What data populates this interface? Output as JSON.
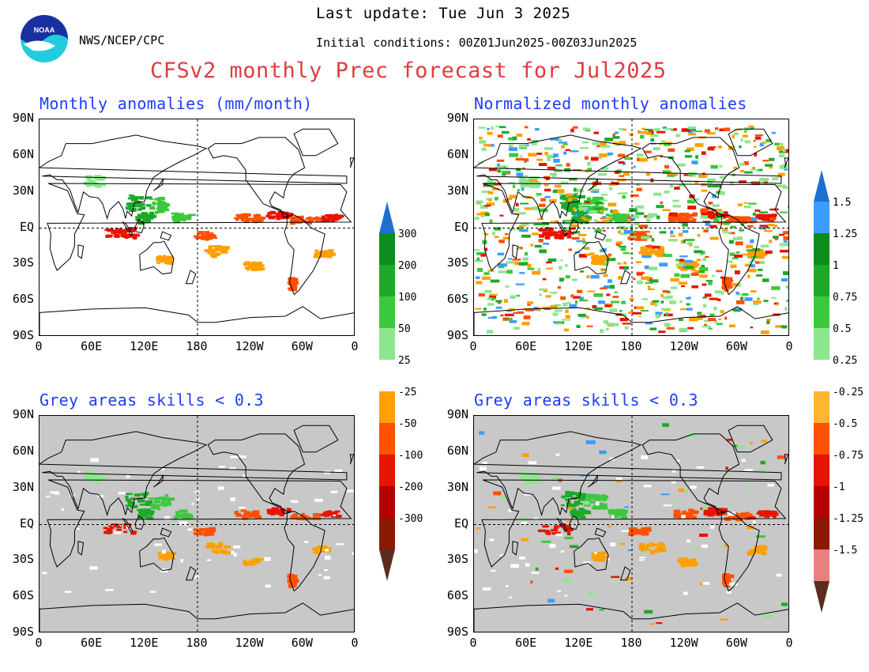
{
  "header": {
    "last_update": "Last update: Tue Jun 3 2025",
    "org": "NWS/NCEP/CPC",
    "init_conditions": "Initial conditions: 00Z01Jun2025-00Z03Jun2025",
    "title": "CFSv2 monthly Prec forecast for Jul2025",
    "title_color": "#e03c3c",
    "logo_text": "NOAA"
  },
  "panels": [
    {
      "id": "top-left",
      "title": "Monthly anomalies (mm/month)",
      "grey_mask": false
    },
    {
      "id": "top-right",
      "title": "Normalized monthly anomalies",
      "grey_mask": false
    },
    {
      "id": "bottom-left",
      "title": "Grey areas skills < 0.3",
      "grey_mask": true
    },
    {
      "id": "bottom-right",
      "title": "Grey areas skills < 0.3",
      "grey_mask": true
    }
  ],
  "axes": {
    "lat_ticks": [
      "90N",
      "60N",
      "30N",
      "EQ",
      "30S",
      "60S",
      "90S"
    ],
    "lon_ticks": [
      "0",
      "60E",
      "120E",
      "180",
      "120W",
      "60W",
      "0"
    ]
  },
  "colorbar_abs": {
    "labels": [
      "300",
      "200",
      "100",
      "50",
      "25",
      "-25",
      "-50",
      "-100",
      "-200",
      "-300"
    ],
    "colors": [
      "#1e6fd0",
      "#0f8c1e",
      "#1fa82a",
      "#3cc83c",
      "#8ce68c",
      "#ffffff",
      "#ffa000",
      "#ff5000",
      "#e61400",
      "#b40000",
      "#8c1a00",
      "#5a2d1e"
    ]
  },
  "colorbar_norm": {
    "labels": [
      "1.5",
      "1.25",
      "1",
      "0.75",
      "0.5",
      "0.25",
      "-0.25",
      "-0.5",
      "-0.75",
      "-1",
      "-1.25",
      "-1.5"
    ],
    "colors": [
      "#1e6fd0",
      "#3c9cff",
      "#0f8c1e",
      "#1fa82a",
      "#3cc83c",
      "#8ce68c",
      "#ffffff",
      "#ffb432",
      "#ff5000",
      "#e61400",
      "#b40000",
      "#8c1a00",
      "#e88080",
      "#5a2d1e"
    ]
  },
  "colors": {
    "grey_mask": "#c8c8c8",
    "panel_title": "#1e3cff"
  }
}
